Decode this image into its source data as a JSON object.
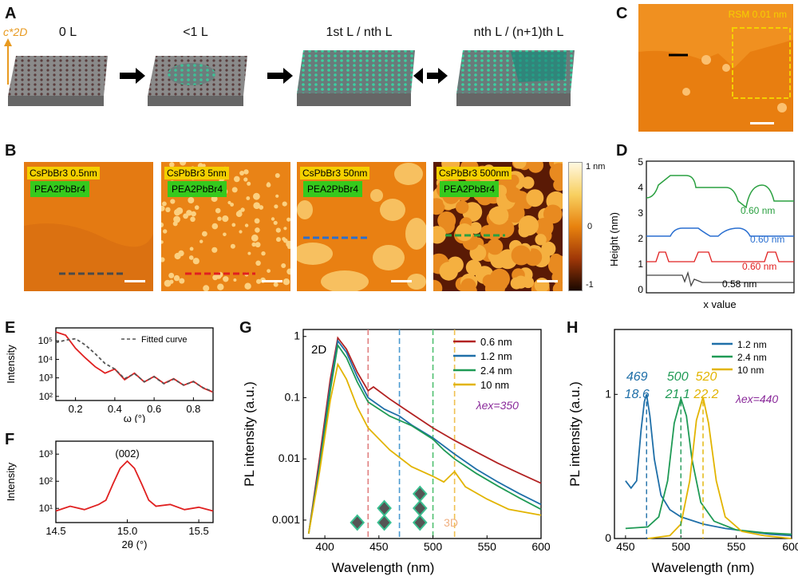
{
  "panels": {
    "A": {
      "label": "A",
      "stages": [
        {
          "text": "0 L"
        },
        {
          "text": "<1 L"
        },
        {
          "text": "1st L / nth L"
        },
        {
          "text": "nth L / (n+1)th L"
        }
      ],
      "axis_label": "c*2D"
    },
    "B": {
      "label": "B",
      "images": [
        {
          "title": "CsPbBr3 0.5nm",
          "sub": "PEA2PbBr4",
          "line_color": "#4a4a4a"
        },
        {
          "title": "CsPbBr3 5nm",
          "sub": "PEA2PbBr4",
          "line_color": "#e02020"
        },
        {
          "title": "CsPbBr3 50nm",
          "sub": "PEA2PbBr4",
          "line_color": "#2a6fd0"
        },
        {
          "title": "CsPbBr3 500nm",
          "sub": "PEA2PbBr4",
          "line_color": "#2aa040"
        }
      ],
      "colorbar": {
        "top": "1 nm",
        "mid": "0",
        "bottom": "-1"
      }
    },
    "C": {
      "label": "C",
      "annotation": "RSM 0.01 nm"
    },
    "D": {
      "label": "D",
      "ylabel": "Height (nm)",
      "xlabel": "x value",
      "yticks": [
        "5",
        "4",
        "3",
        "2",
        "1",
        "0"
      ],
      "annotations": [
        "0.60 nm",
        "0.60 nm",
        "0.60 nm",
        "0.58 nm"
      ]
    },
    "E": {
      "label": "E",
      "ylabel": "Intensity",
      "xlabel": "ω (°)",
      "legend": "Fitted curve",
      "xticks": [
        "0.2",
        "0.4",
        "0.6",
        "0.8"
      ],
      "yticks": [
        "10⁵",
        "10⁴",
        "10³",
        "10²"
      ]
    },
    "F": {
      "label": "F",
      "ylabel": "Intensity",
      "xlabel": "2θ (°)",
      "peak": "(002)",
      "xticks": [
        "14.5",
        "15.0",
        "15.5"
      ],
      "yticks": [
        "10³",
        "10²",
        "10¹"
      ]
    },
    "G": {
      "label": "G",
      "ylabel": "PL intensity (a.u.)",
      "xlabel": "Wavelength (nm)",
      "tag2d": "2D",
      "tag3d": "3D",
      "lambda": "λex=350",
      "xticks": [
        "400",
        "450",
        "500",
        "550",
        "600"
      ],
      "yticks": [
        "1",
        "0.1",
        "0.01",
        "0.001"
      ]
    },
    "H": {
      "label": "H",
      "ylabel": "PL intensity (a.u.)",
      "xlabel": "Wavelength (nm)",
      "lambda": "λex=440",
      "xticks": [
        "450",
        "500",
        "550",
        "600"
      ],
      "yticks": [
        "1",
        "0"
      ],
      "peaks": [
        {
          "wl": "469",
          "fwhm": "18.6",
          "color": "#1f6fa8"
        },
        {
          "wl": "500",
          "fwhm": "21.1",
          "color": "#1f9a55"
        },
        {
          "wl": "520",
          "fwhm": "22.2",
          "color": "#e2b400"
        }
      ]
    }
  },
  "chart_data": [
    {
      "type": "line",
      "title": "G",
      "xlabel": "Wavelength (nm)",
      "ylabel": "PL intensity (a.u.)",
      "xlim": [
        380,
        600
      ],
      "ylim": [
        0.0005,
        1.3
      ],
      "yscale": "log",
      "series": [
        {
          "name": "0.6 nm",
          "color": "#b22222",
          "x": [
            385,
            395,
            405,
            412,
            420,
            430,
            440,
            445,
            460,
            480,
            500,
            520,
            540,
            560,
            580,
            600
          ],
          "y": [
            0.0006,
            0.01,
            0.2,
            0.95,
            0.62,
            0.26,
            0.13,
            0.15,
            0.095,
            0.055,
            0.032,
            0.02,
            0.013,
            0.0085,
            0.0058,
            0.004
          ]
        },
        {
          "name": "1.2 nm",
          "color": "#1f6fa8",
          "x": [
            385,
            395,
            405,
            412,
            420,
            430,
            440,
            455,
            469,
            480,
            500,
            520,
            540,
            560,
            580,
            600
          ],
          "y": [
            0.0006,
            0.008,
            0.16,
            0.85,
            0.55,
            0.22,
            0.1,
            0.065,
            0.05,
            0.036,
            0.022,
            0.012,
            0.0068,
            0.0042,
            0.0027,
            0.0018
          ]
        },
        {
          "name": "2.4 nm",
          "color": "#1f9a55",
          "x": [
            385,
            395,
            405,
            412,
            420,
            430,
            440,
            460,
            480,
            500,
            510,
            520,
            540,
            560,
            580,
            600
          ],
          "y": [
            0.0006,
            0.007,
            0.13,
            0.72,
            0.45,
            0.18,
            0.085,
            0.05,
            0.035,
            0.021,
            0.014,
            0.01,
            0.0058,
            0.0036,
            0.0023,
            0.0015
          ]
        },
        {
          "name": "10 nm",
          "color": "#e2b400",
          "x": [
            385,
            395,
            405,
            412,
            420,
            430,
            440,
            460,
            480,
            500,
            510,
            520,
            530,
            550,
            570,
            600
          ],
          "y": [
            0.0006,
            0.006,
            0.09,
            0.35,
            0.2,
            0.07,
            0.032,
            0.014,
            0.0075,
            0.0052,
            0.0042,
            0.0062,
            0.0035,
            0.0022,
            0.0015,
            0.0012
          ]
        }
      ],
      "vlines": [
        {
          "x": 440,
          "color": "#e08080"
        },
        {
          "x": 469,
          "color": "#4a9ad0"
        },
        {
          "x": 500,
          "color": "#50c070"
        },
        {
          "x": 520,
          "color": "#f0c050"
        }
      ]
    },
    {
      "type": "line",
      "title": "H",
      "xlabel": "Wavelength (nm)",
      "ylabel": "PL intensity (a.u.)",
      "xlim": [
        440,
        600
      ],
      "ylim": [
        0,
        1.45
      ],
      "series": [
        {
          "name": "1.2 nm",
          "color": "#1f6fa8",
          "x": [
            450,
            455,
            460,
            464,
            467,
            469,
            472,
            476,
            482,
            490,
            500,
            520,
            540,
            560,
            580,
            600
          ],
          "y": [
            0.4,
            0.35,
            0.4,
            0.75,
            0.95,
            1.0,
            0.85,
            0.55,
            0.3,
            0.2,
            0.15,
            0.1,
            0.07,
            0.05,
            0.03,
            0.02
          ]
        },
        {
          "name": "2.4 nm",
          "color": "#1f9a55",
          "x": [
            450,
            470,
            480,
            488,
            494,
            500,
            505,
            510,
            518,
            530,
            550,
            575,
            600
          ],
          "y": [
            0.07,
            0.08,
            0.15,
            0.4,
            0.8,
            0.97,
            0.85,
            0.55,
            0.25,
            0.12,
            0.06,
            0.04,
            0.03
          ]
        },
        {
          "name": "10 nm",
          "color": "#e2b400",
          "x": [
            470,
            490,
            500,
            508,
            514,
            520,
            525,
            532,
            540,
            555,
            575,
            600
          ],
          "y": [
            0.0,
            0.02,
            0.1,
            0.4,
            0.82,
            0.98,
            0.8,
            0.4,
            0.15,
            0.05,
            0.02,
            0.0
          ]
        }
      ]
    },
    {
      "type": "line",
      "title": "E",
      "xlabel": "ω (°)",
      "ylabel": "Intensity",
      "xlim": [
        0.1,
        0.9
      ],
      "ylim": [
        60,
        500000
      ],
      "yscale": "log",
      "series": [
        {
          "name": "data",
          "color": "#e02020",
          "x": [
            0.1,
            0.15,
            0.2,
            0.25,
            0.3,
            0.35,
            0.4,
            0.45,
            0.5,
            0.55,
            0.6,
            0.65,
            0.7,
            0.75,
            0.8,
            0.85,
            0.9
          ],
          "y": [
            300000,
            200000,
            40000,
            12000,
            4000,
            1800,
            3000,
            800,
            1800,
            600,
            1200,
            500,
            900,
            400,
            650,
            280,
            170
          ]
        },
        {
          "name": "Fitted curve",
          "color": "#555555",
          "dashed": true,
          "x": [
            0.1,
            0.15,
            0.2,
            0.25,
            0.3,
            0.35,
            0.4,
            0.45,
            0.5,
            0.55,
            0.6,
            0.65,
            0.7,
            0.75,
            0.8,
            0.85,
            0.9
          ],
          "y": [
            80000,
            110000,
            130000,
            60000,
            20000,
            6000,
            3000,
            900,
            1700,
            620,
            1150,
            480,
            860,
            410,
            620,
            290,
            180
          ]
        }
      ]
    },
    {
      "type": "line",
      "title": "F",
      "xlabel": "2θ (°)",
      "ylabel": "Intensity",
      "xlim": [
        14.5,
        15.6
      ],
      "ylim": [
        3,
        3000
      ],
      "yscale": "log",
      "series": [
        {
          "name": "data",
          "color": "#e02020",
          "x": [
            14.5,
            14.6,
            14.7,
            14.8,
            14.85,
            14.9,
            14.95,
            15.0,
            15.05,
            15.1,
            15.15,
            15.2,
            15.3,
            15.4,
            15.5,
            15.6
          ],
          "y": [
            8,
            12,
            9,
            14,
            20,
            80,
            300,
            550,
            300,
            80,
            20,
            12,
            14,
            9,
            11,
            8
          ]
        }
      ]
    }
  ]
}
